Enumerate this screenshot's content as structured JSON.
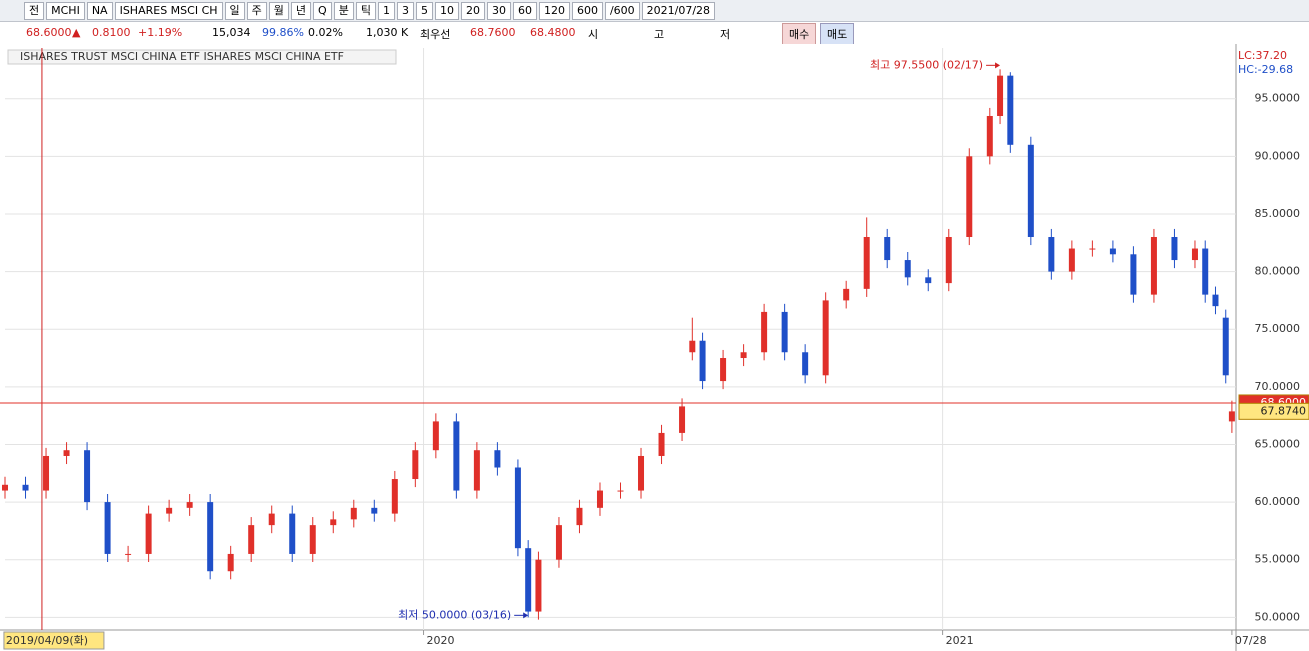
{
  "toolbar": {
    "items": [
      "전",
      "MCHI",
      "NA",
      "ISHARES MSCI CH",
      "일",
      "주",
      "월",
      "년",
      "Q",
      "분",
      "틱",
      "1",
      "3",
      "5",
      "10",
      "20",
      "30",
      "60",
      "120",
      "600",
      "/600",
      "2021/07/28"
    ]
  },
  "info_bar": {
    "price": "68.6000",
    "arrow": "▲",
    "change": "0.8100",
    "change_pct": "+1.19%",
    "volume": "15,034",
    "ratio": "99.86%",
    "turnover": "0.02%",
    "amount": "1,030 K",
    "best_label": "최우선",
    "ask": "68.7600",
    "bid": "68.4800",
    "open_label": "시",
    "high_label": "고",
    "low_label": "저",
    "buy": "매수",
    "sell": "매도"
  },
  "chart_data": {
    "type": "candlestick",
    "title": "ISHARES TRUST MSCI CHINA ETF  ISHARES MSCI CHINA ETF",
    "corner_labels": [
      "LC:37.20",
      "HC:-29.68"
    ],
    "x": [
      0,
      10,
      20,
      30,
      40,
      50,
      60,
      70,
      80,
      90,
      100,
      110,
      120,
      130,
      140,
      150,
      160,
      170,
      180,
      190,
      200,
      210,
      220,
      230,
      240,
      250,
      255,
      260,
      270,
      280,
      290,
      300,
      310,
      320,
      330,
      335,
      340,
      350,
      360,
      370,
      380,
      390,
      400,
      410,
      420,
      430,
      440,
      450,
      460,
      470,
      480,
      485,
      490,
      500,
      510,
      520,
      530,
      540,
      550,
      560,
      570,
      580,
      585,
      590,
      595,
      598
    ],
    "open": [
      61,
      61.5,
      61,
      64,
      64.5,
      60,
      55.5,
      55.5,
      59,
      59.5,
      60,
      54,
      55.5,
      58,
      59,
      55.5,
      58,
      58.5,
      59.5,
      59,
      62,
      64.5,
      67,
      61,
      64.5,
      63,
      56,
      50.5,
      55,
      58,
      59.5,
      61,
      61,
      64,
      66,
      73,
      74,
      70.5,
      72.5,
      73,
      76.5,
      73,
      71,
      77.5,
      78.5,
      83,
      81,
      79.5,
      79,
      83,
      90,
      93.5,
      97,
      91,
      83,
      80,
      82,
      82,
      81.5,
      78,
      83,
      81,
      82,
      78,
      76,
      67
    ],
    "high": [
      62.2,
      62.2,
      64.7,
      65.2,
      65.2,
      60.7,
      56.2,
      59.7,
      60.2,
      60.7,
      60.7,
      56.2,
      58.7,
      59.7,
      59.7,
      58.7,
      59.2,
      60.2,
      60.2,
      62.7,
      65.2,
      67.7,
      67.7,
      65.2,
      65.2,
      63.7,
      56.7,
      55.7,
      58.7,
      60.2,
      61.7,
      61.7,
      64.7,
      66.7,
      69,
      76,
      74.7,
      73.2,
      73.7,
      77.2,
      77.2,
      73.7,
      78.2,
      79.2,
      84.7,
      83.7,
      81.7,
      80.2,
      83.7,
      90.7,
      94.2,
      97.55,
      97.3,
      91.7,
      83.7,
      82.7,
      82.7,
      82.7,
      82.2,
      83.7,
      83.7,
      82.7,
      82.7,
      78.7,
      76.7,
      68.8
    ],
    "low": [
      60.3,
      60.3,
      60.3,
      63.3,
      59.3,
      54.8,
      54.8,
      54.8,
      58.3,
      58.8,
      53.3,
      53.3,
      54.8,
      57.3,
      54.8,
      54.8,
      57.3,
      57.8,
      58.3,
      58.3,
      61.3,
      63.8,
      60.3,
      60.3,
      62.3,
      55.3,
      50,
      49.8,
      54.3,
      57.3,
      58.8,
      60.3,
      60.3,
      63.3,
      65.3,
      72.3,
      69.8,
      69.8,
      71.8,
      72.3,
      72.3,
      70.3,
      70.3,
      76.8,
      77.8,
      80.3,
      78.8,
      78.3,
      78.3,
      82.3,
      89.3,
      92.8,
      90.3,
      82.3,
      79.3,
      79.3,
      81.3,
      80.8,
      77.3,
      77.3,
      80.3,
      80.3,
      77.3,
      76.3,
      70.3,
      66
    ],
    "close": [
      61.5,
      61,
      64,
      64.5,
      60,
      55.5,
      55.5,
      59,
      59.5,
      60,
      54,
      55.5,
      58,
      59,
      55.5,
      58,
      58.5,
      59.5,
      59,
      62,
      64.5,
      67,
      61,
      64.5,
      63,
      56,
      50.5,
      55,
      58,
      59.5,
      61,
      61,
      64,
      66,
      68.3,
      74,
      70.5,
      72.5,
      73,
      76.5,
      73,
      71,
      77.5,
      78.5,
      83,
      81,
      79.5,
      79,
      83,
      90,
      93.5,
      97,
      91,
      83,
      80,
      82,
      82,
      81.5,
      78,
      83,
      81,
      82,
      78,
      77,
      71,
      67.87
    ],
    "up_color": "#e0302a",
    "down_color": "#1f4fc8",
    "xlim": [
      0,
      600
    ],
    "xticks": [
      {
        "value": 204,
        "label": "2020"
      },
      {
        "value": 457,
        "label": "2021"
      },
      {
        "value": 598,
        "label": "07/28"
      }
    ],
    "ylim": [
      48.9,
      99.4
    ],
    "yticks": [
      {
        "value": 50,
        "label": "50.0000"
      },
      {
        "value": 55,
        "label": "55.0000"
      },
      {
        "value": 60,
        "label": "60.0000"
      },
      {
        "value": 65,
        "label": "65.0000"
      },
      {
        "value": 70,
        "label": "70.0000"
      },
      {
        "value": 75,
        "label": "75.0000"
      },
      {
        "value": 80,
        "label": "80.0000"
      },
      {
        "value": 85,
        "label": "85.0000"
      },
      {
        "value": 90,
        "label": "90.0000"
      },
      {
        "value": 95,
        "label": "95.0000"
      }
    ],
    "grid": true,
    "annotations": [
      {
        "text": "최고 97.5500 (02/17)",
        "x": 485,
        "y": 97.55,
        "color": "#d02020"
      },
      {
        "text": "최저 50.0000 (03/16)",
        "x": 255,
        "y": 50,
        "color": "#1f2fb0"
      }
    ],
    "cursor": {
      "x": 18,
      "label": "2019/04/09(화)"
    },
    "price_lines": [
      {
        "value": 68.6,
        "label": "68.6000",
        "color": "#e0302a"
      },
      {
        "value": 67.874,
        "label": "67.8740",
        "color": "#ffe680"
      }
    ]
  }
}
